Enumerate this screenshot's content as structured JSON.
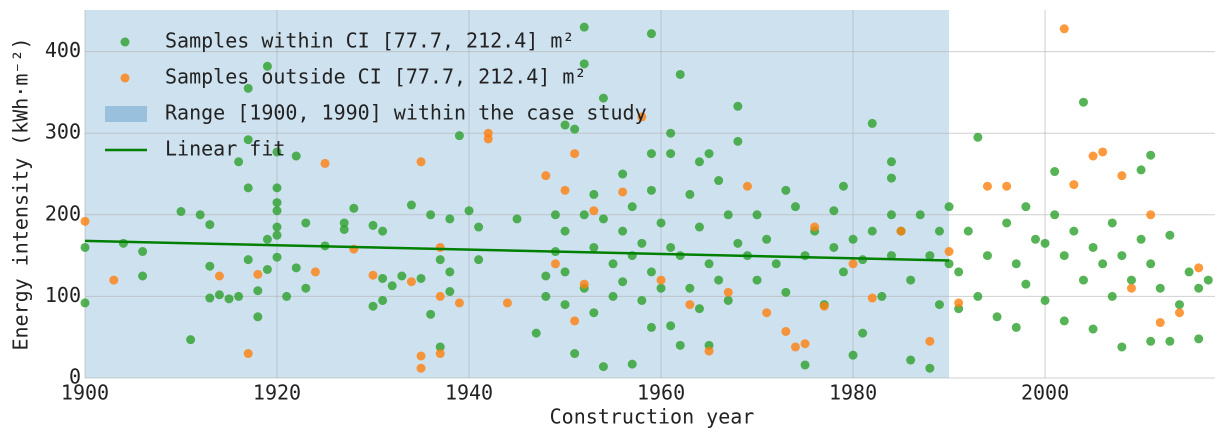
{
  "chart_data": {
    "type": "scatter",
    "xlabel": "Construction year",
    "ylabel": "Energy intensity (kWh·m⁻²)",
    "xlim": [
      1900,
      2017.7
    ],
    "ylim": [
      0,
      451
    ],
    "xticks": [
      1900,
      1920,
      1940,
      1960,
      1980,
      2000
    ],
    "yticks": [
      0,
      100,
      200,
      300,
      400
    ],
    "grid": true,
    "legend": "upper left",
    "span": {
      "name": "Range [1900, 1990] within the case study",
      "color": "#1f77b4",
      "x": [
        1900,
        1990
      ]
    },
    "fit": {
      "name": "Linear fit",
      "color": "#008000",
      "x": [
        1900,
        1990
      ],
      "values": [
        168,
        144
      ]
    },
    "series": [
      {
        "name": "Samples within CI [77.7, 212.4] m²",
        "color": "#2ca02c",
        "x": [
          1900,
          1900,
          1904,
          1906,
          1906,
          1910,
          1911,
          1912,
          1913,
          1913,
          1913,
          1914,
          1915,
          1916,
          1916,
          1917,
          1917,
          1917,
          1917,
          1918,
          1918,
          1919,
          1919,
          1919,
          1920,
          1920,
          1920,
          1920,
          1920,
          1920,
          1920,
          1921,
          1922,
          1922,
          1923,
          1923,
          1925,
          1927,
          1927,
          1928,
          1930,
          1930,
          1931,
          1931,
          1931,
          1932,
          1933,
          1934,
          1935,
          1936,
          1936,
          1937,
          1937,
          1938,
          1938,
          1938,
          1939,
          1940,
          1941,
          1941,
          1945,
          1947,
          1948,
          1948,
          1949,
          1949,
          1950,
          1950,
          1950,
          1950,
          1951,
          1951,
          1952,
          1952,
          1952,
          1952,
          1953,
          1953,
          1953,
          1954,
          1954,
          1954,
          1955,
          1955,
          1956,
          1956,
          1956,
          1957,
          1957,
          1957,
          1958,
          1958,
          1959,
          1959,
          1959,
          1959,
          1959,
          1960,
          1960,
          1961,
          1961,
          1961,
          1961,
          1962,
          1962,
          1962,
          1963,
          1963,
          1964,
          1964,
          1964,
          1965,
          1965,
          1965,
          1966,
          1966,
          1967,
          1967,
          1968,
          1968,
          1968,
          1969,
          1970,
          1970,
          1971,
          1972,
          1973,
          1973,
          1974,
          1975,
          1975,
          1976,
          1977,
          1978,
          1978,
          1979,
          1979,
          1980,
          1980,
          1981,
          1981,
          1982,
          1982,
          1983,
          1984,
          1984,
          1984,
          1984,
          1985,
          1986,
          1986,
          1987,
          1988,
          1988,
          1989,
          1989,
          1990,
          1990,
          1991,
          1991,
          1992,
          1993,
          1993,
          1994,
          1995,
          1996,
          1997,
          1997,
          1998,
          1998,
          1999,
          2000,
          2000,
          2001,
          2001,
          2002,
          2002,
          2003,
          2004,
          2004,
          2005,
          2005,
          2006,
          2007,
          2007,
          2008,
          2008,
          2009,
          2010,
          2010,
          2011,
          2011,
          2011,
          2012,
          2013,
          2013,
          2014,
          2015,
          2016,
          2016,
          2017
        ],
        "values": [
          160,
          92,
          165,
          155,
          125,
          204,
          47,
          200,
          188,
          137,
          98,
          102,
          97,
          100,
          265,
          355,
          292,
          233,
          145,
          107,
          75,
          382,
          170,
          133,
          277,
          233,
          215,
          205,
          185,
          175,
          148,
          100,
          272,
          135,
          190,
          110,
          162,
          190,
          182,
          208,
          187,
          88,
          122,
          95,
          180,
          113,
          125,
          212,
          122,
          78,
          200,
          38,
          145,
          195,
          106,
          130,
          297,
          205,
          185,
          145,
          195,
          55,
          125,
          100,
          200,
          155,
          90,
          310,
          180,
          130,
          30,
          305,
          430,
          385,
          200,
          110,
          225,
          160,
          80,
          343,
          14,
          195,
          140,
          100,
          250,
          180,
          118,
          210,
          150,
          17,
          165,
          95,
          422,
          275,
          230,
          130,
          62,
          190,
          110,
          300,
          275,
          160,
          64,
          372,
          150,
          40,
          225,
          110,
          265,
          185,
          85,
          275,
          140,
          40,
          242,
          120,
          200,
          95,
          333,
          290,
          165,
          150,
          200,
          120,
          170,
          140,
          230,
          105,
          210,
          150,
          16,
          180,
          90,
          160,
          205,
          130,
          235,
          170,
          28,
          145,
          55,
          312,
          180,
          100,
          265,
          245,
          200,
          150,
          180,
          120,
          22,
          200,
          12,
          150,
          180,
          90,
          210,
          140,
          130,
          85,
          180,
          295,
          100,
          150,
          75,
          190,
          140,
          62,
          210,
          115,
          170,
          165,
          95,
          253,
          200,
          150,
          70,
          180,
          338,
          120,
          160,
          60,
          140,
          190,
          100,
          38,
          150,
          120,
          255,
          170,
          273,
          140,
          45,
          110,
          175,
          45,
          90,
          130,
          48,
          110,
          120
        ]
      },
      {
        "name": "Samples outside CI [77.7, 212.4] m²",
        "color": "#ff7f0e",
        "x": [
          1900,
          1903,
          1914,
          1917,
          1918,
          1924,
          1925,
          1928,
          1930,
          1934,
          1935,
          1935,
          1935,
          1937,
          1937,
          1937,
          1939,
          1942,
          1942,
          1944,
          1948,
          1949,
          1950,
          1951,
          1951,
          1952,
          1953,
          1956,
          1958,
          1960,
          1963,
          1965,
          1967,
          1969,
          1971,
          1973,
          1974,
          1975,
          1976,
          1977,
          1980,
          1982,
          1985,
          1988,
          1990,
          1991,
          1994,
          1996,
          2002,
          2003,
          2005,
          2006,
          2008,
          2009,
          2011,
          2012,
          2014,
          2016
        ],
        "values": [
          192,
          120,
          125,
          30,
          127,
          130,
          263,
          158,
          126,
          118,
          265,
          27,
          12,
          30,
          160,
          100,
          92,
          300,
          293,
          92,
          248,
          140,
          230,
          275,
          70,
          115,
          205,
          228,
          320,
          120,
          90,
          33,
          105,
          235,
          80,
          57,
          38,
          42,
          185,
          88,
          140,
          98,
          180,
          45,
          155,
          92,
          235,
          235,
          428,
          237,
          272,
          277,
          248,
          110,
          200,
          68,
          80,
          135
        ]
      }
    ]
  }
}
